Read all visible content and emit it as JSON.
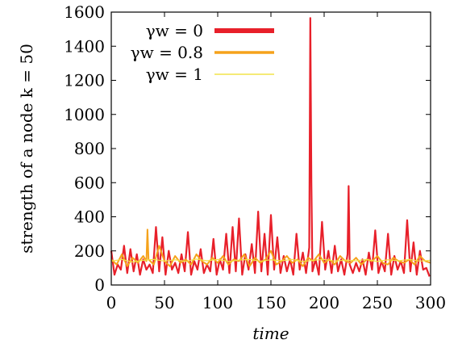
{
  "chart_data": {
    "type": "line",
    "title": "",
    "xlabel": "time",
    "ylabel": "strength of a node k = 50",
    "xlim": [
      0,
      300
    ],
    "ylim": [
      0,
      1600
    ],
    "x_ticks": [
      "0",
      "50",
      "100",
      "150",
      "200",
      "250",
      "300"
    ],
    "y_ticks": [
      "0",
      "200",
      "400",
      "600",
      "800",
      "1000",
      "1200",
      "1400",
      "1600"
    ],
    "legend_position": "top-left",
    "grid": false,
    "series": [
      {
        "name": "γw = 0",
        "color": "#e8202a",
        "x": [
          0,
          3,
          6,
          9,
          12,
          15,
          18,
          21,
          24,
          27,
          30,
          33,
          36,
          39,
          42,
          45,
          48,
          51,
          54,
          57,
          60,
          63,
          66,
          69,
          72,
          75,
          78,
          81,
          84,
          87,
          90,
          93,
          96,
          99,
          102,
          105,
          108,
          111,
          114,
          117,
          120,
          123,
          126,
          129,
          132,
          135,
          138,
          141,
          144,
          147,
          150,
          153,
          156,
          159,
          162,
          165,
          168,
          171,
          174,
          177,
          180,
          183,
          186,
          187,
          188,
          189,
          192,
          195,
          198,
          201,
          204,
          207,
          210,
          213,
          216,
          219,
          222,
          223,
          224,
          227,
          230,
          233,
          236,
          239,
          242,
          245,
          248,
          251,
          254,
          257,
          260,
          263,
          266,
          269,
          272,
          275,
          278,
          281,
          284,
          287,
          290,
          293,
          296,
          299
        ],
        "y": [
          200,
          60,
          120,
          90,
          230,
          70,
          210,
          80,
          180,
          60,
          150,
          90,
          120,
          70,
          340,
          80,
          280,
          60,
          200,
          90,
          130,
          70,
          180,
          80,
          310,
          60,
          140,
          90,
          210,
          70,
          120,
          80,
          270,
          60,
          150,
          90,
          300,
          70,
          340,
          80,
          390,
          60,
          180,
          90,
          240,
          70,
          430,
          80,
          300,
          60,
          410,
          90,
          280,
          70,
          170,
          80,
          150,
          60,
          300,
          90,
          190,
          70,
          220,
          1565,
          600,
          80,
          150,
          60,
          370,
          90,
          200,
          70,
          230,
          80,
          150,
          60,
          180,
          580,
          120,
          70,
          130,
          80,
          150,
          60,
          190,
          90,
          320,
          70,
          140,
          80,
          300,
          60,
          170,
          90,
          140,
          70,
          380,
          80,
          250,
          60,
          200,
          90,
          100,
          50
        ]
      },
      {
        "name": "γw = 0.8",
        "color": "#f5a21b",
        "x": [
          0,
          5,
          10,
          15,
          20,
          25,
          30,
          33,
          34,
          35,
          40,
          45,
          50,
          55,
          60,
          65,
          70,
          75,
          80,
          85,
          90,
          95,
          100,
          105,
          110,
          115,
          120,
          125,
          130,
          135,
          140,
          145,
          150,
          155,
          160,
          165,
          170,
          175,
          180,
          185,
          190,
          195,
          200,
          205,
          210,
          215,
          220,
          225,
          230,
          235,
          240,
          245,
          250,
          255,
          260,
          265,
          270,
          275,
          280,
          285,
          290,
          295,
          300
        ],
        "y": [
          150,
          120,
          180,
          110,
          160,
          130,
          170,
          140,
          325,
          150,
          120,
          230,
          140,
          110,
          170,
          130,
          150,
          120,
          180,
          140,
          120,
          160,
          130,
          170,
          120,
          150,
          140,
          180,
          110,
          160,
          130,
          150,
          200,
          120,
          140,
          170,
          130,
          150,
          110,
          160,
          140,
          180,
          130,
          150,
          120,
          170,
          140,
          130,
          160,
          120,
          150,
          140,
          170,
          130,
          120,
          160,
          140,
          130,
          150,
          120,
          170,
          140,
          130
        ]
      },
      {
        "name": "γw = 1",
        "color": "#f2e34a",
        "x": [
          0,
          10,
          20,
          30,
          40,
          50,
          60,
          70,
          80,
          90,
          100,
          110,
          120,
          130,
          140,
          150,
          160,
          170,
          180,
          190,
          200,
          210,
          220,
          230,
          240,
          250,
          260,
          270,
          280,
          290,
          300
        ],
        "y": [
          140,
          150,
          135,
          145,
          150,
          140,
          148,
          138,
          152,
          142,
          150,
          138,
          146,
          150,
          140,
          148,
          142,
          150,
          138,
          145,
          150,
          140,
          146,
          142,
          150,
          138,
          148,
          142,
          150,
          140,
          145
        ]
      }
    ]
  }
}
